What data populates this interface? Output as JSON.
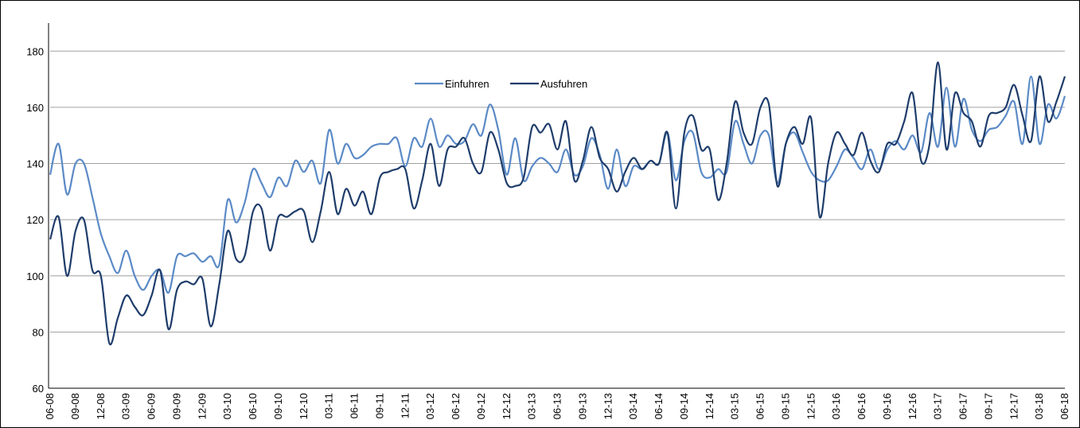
{
  "chart_data": {
    "type": "line",
    "categories": [
      "06-08",
      null,
      null,
      "09-08",
      null,
      null,
      "12-08",
      null,
      null,
      "03-09",
      null,
      null,
      "06-09",
      null,
      null,
      "09-09",
      null,
      null,
      "12-09",
      null,
      null,
      "03-10",
      null,
      null,
      "06-10",
      null,
      null,
      "09-10",
      null,
      null,
      "12-10",
      null,
      null,
      "03-11",
      null,
      null,
      "06-11",
      null,
      null,
      "09-11",
      null,
      null,
      "12-11",
      null,
      null,
      "03-12",
      null,
      null,
      "06-12",
      null,
      null,
      "09-12",
      null,
      null,
      "12-12",
      null,
      null,
      "03-13",
      null,
      null,
      "06-13",
      null,
      null,
      "09-13",
      null,
      null,
      "12-13",
      null,
      null,
      "03-14",
      null,
      null,
      "06-14",
      null,
      null,
      "09-14",
      null,
      null,
      "12-14",
      null,
      null,
      "03-15",
      null,
      null,
      "06-15",
      null,
      null,
      "09-15",
      null,
      null,
      "12-15",
      null,
      null,
      "03-16",
      null,
      null,
      "06-16",
      null,
      null,
      "09-16",
      null,
      null,
      "12-16",
      null,
      null,
      "03-17",
      null,
      null,
      "06-17",
      null,
      null,
      "09-17",
      null,
      null,
      "12-17",
      null,
      null,
      "03-18",
      null,
      null,
      "06-18"
    ],
    "series": [
      {
        "name": "Einfuhren",
        "color": "#5b8ac6",
        "values": [
          136,
          147,
          129,
          140,
          140,
          128,
          115,
          107,
          101,
          109,
          100,
          95,
          100,
          102,
          94,
          107,
          107,
          108,
          105,
          107,
          104,
          127,
          119,
          126,
          138,
          133,
          128,
          135,
          132,
          141,
          137,
          141,
          133,
          152,
          140,
          147,
          142,
          143,
          146,
          147,
          147,
          149,
          139,
          149,
          146,
          156,
          146,
          150,
          147,
          148,
          154,
          150,
          161,
          152,
          136,
          149,
          134,
          139,
          142,
          140,
          137,
          145,
          136,
          139,
          149,
          143,
          131,
          145,
          132,
          139,
          138,
          141,
          140,
          151,
          134,
          148,
          151,
          137,
          135,
          138,
          137,
          155,
          147,
          140,
          150,
          150,
          133,
          147,
          151,
          144,
          137,
          134,
          134,
          139,
          145,
          142,
          138,
          145,
          138,
          145,
          148,
          145,
          150,
          144,
          158,
          146,
          167,
          146,
          163,
          152,
          148,
          152,
          153,
          157,
          162,
          147,
          171,
          147,
          161,
          156,
          164
        ]
      },
      {
        "name": "Ausfuhren",
        "color": "#1f3d6b",
        "values": [
          113,
          121,
          100,
          116,
          120,
          102,
          100,
          76,
          85,
          93,
          89,
          86,
          93,
          102,
          81,
          95,
          98,
          97,
          99,
          82,
          97,
          116,
          106,
          107,
          123,
          124,
          109,
          121,
          121,
          123,
          123,
          112,
          123,
          137,
          122,
          131,
          125,
          130,
          122,
          135,
          137,
          138,
          138,
          124,
          134,
          147,
          132,
          145,
          146,
          149,
          140,
          137,
          151,
          145,
          133,
          132,
          135,
          153,
          151,
          154,
          145,
          155,
          134,
          141,
          153,
          142,
          138,
          130,
          137,
          142,
          138,
          141,
          140,
          151,
          124,
          151,
          157,
          145,
          145,
          127,
          140,
          162,
          151,
          147,
          160,
          161,
          132,
          147,
          153,
          147,
          156,
          121,
          140,
          151,
          147,
          143,
          151,
          141,
          137,
          147,
          147,
          155,
          165,
          141,
          147,
          176,
          145,
          165,
          158,
          155,
          146,
          157,
          158,
          160,
          168,
          157,
          148,
          171,
          155,
          162,
          171
        ]
      }
    ],
    "ylim": [
      60,
      190
    ],
    "yticks": [
      60,
      80,
      100,
      120,
      140,
      160,
      180
    ],
    "grid": true,
    "legend": "top"
  }
}
